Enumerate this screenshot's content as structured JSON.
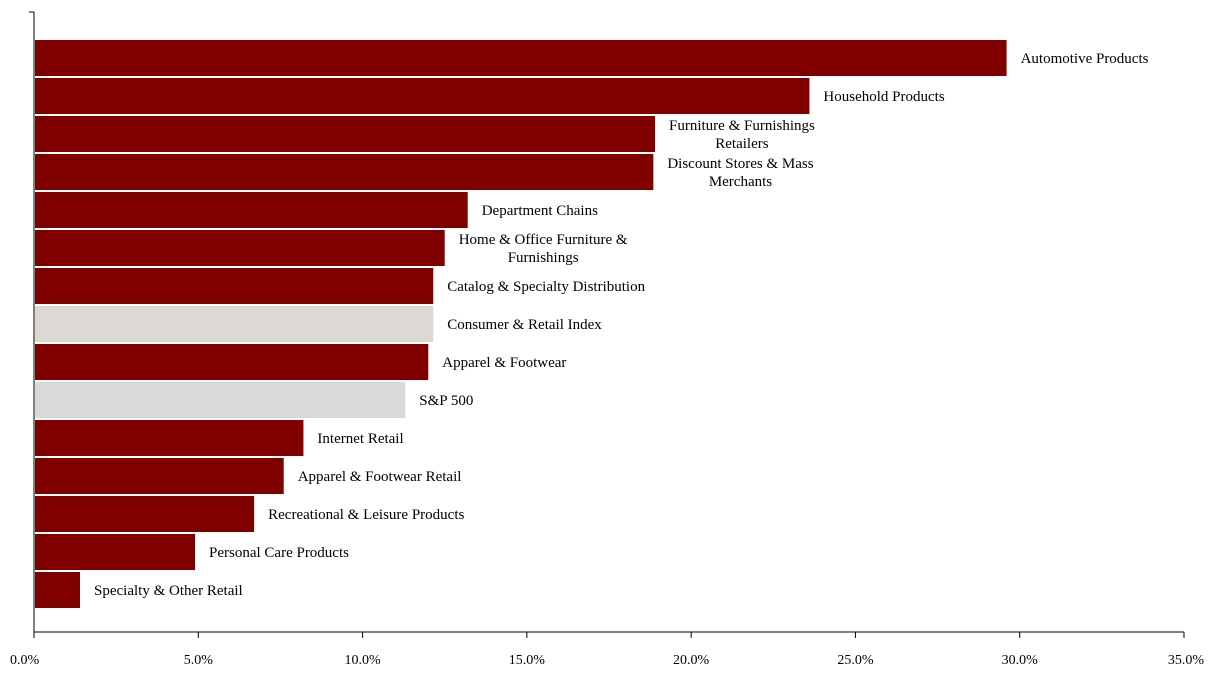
{
  "chart_data": {
    "type": "bar",
    "orientation": "horizontal",
    "title": "",
    "xlabel": "",
    "ylabel": "",
    "xlim": [
      0,
      35
    ],
    "x_ticks": [
      "0.0%",
      "5.0%",
      "10.0%",
      "15.0%",
      "20.0%",
      "25.0%",
      "30.0%",
      "35.0%"
    ],
    "grid": false,
    "legend": "none",
    "colors": {
      "default": "#800000",
      "Consumer & Retail Index": "#dcd8d3",
      "S&P 500": "#d9d9d9"
    },
    "categories": [
      "Automotive Products",
      "Household Products",
      "Furniture & Furnishings Retailers",
      "Discount Stores & Mass Merchants",
      "Department Chains",
      "Home & Office Furniture & Furnishings",
      "Catalog & Specialty Distribution",
      "Consumer & Retail Index",
      "Apparel & Footwear",
      "S&P 500",
      "Internet Retail",
      "Apparel & Footwear Retail",
      "Recreational & Leisure Products",
      "Personal Care Products",
      "Specialty & Other Retail"
    ],
    "label_lines": [
      [
        "Automotive Products"
      ],
      [
        "Household Products"
      ],
      [
        "Furniture & Furnishings",
        "Retailers"
      ],
      [
        "Discount Stores & Mass",
        "Merchants"
      ],
      [
        "Department Chains"
      ],
      [
        "Home & Office Furniture &",
        "Furnishings"
      ],
      [
        "Catalog & Specialty Distribution"
      ],
      [
        "Consumer & Retail Index"
      ],
      [
        "Apparel & Footwear"
      ],
      [
        "S&P 500"
      ],
      [
        "Internet Retail"
      ],
      [
        "Apparel & Footwear Retail"
      ],
      [
        "Recreational & Leisure Products"
      ],
      [
        "Personal Care Products"
      ],
      [
        "Specialty & Other Retail"
      ]
    ],
    "values": [
      29.6,
      23.6,
      18.9,
      18.85,
      13.2,
      12.5,
      12.15,
      12.15,
      12.0,
      11.3,
      8.2,
      7.6,
      6.7,
      4.9,
      1.4
    ]
  }
}
